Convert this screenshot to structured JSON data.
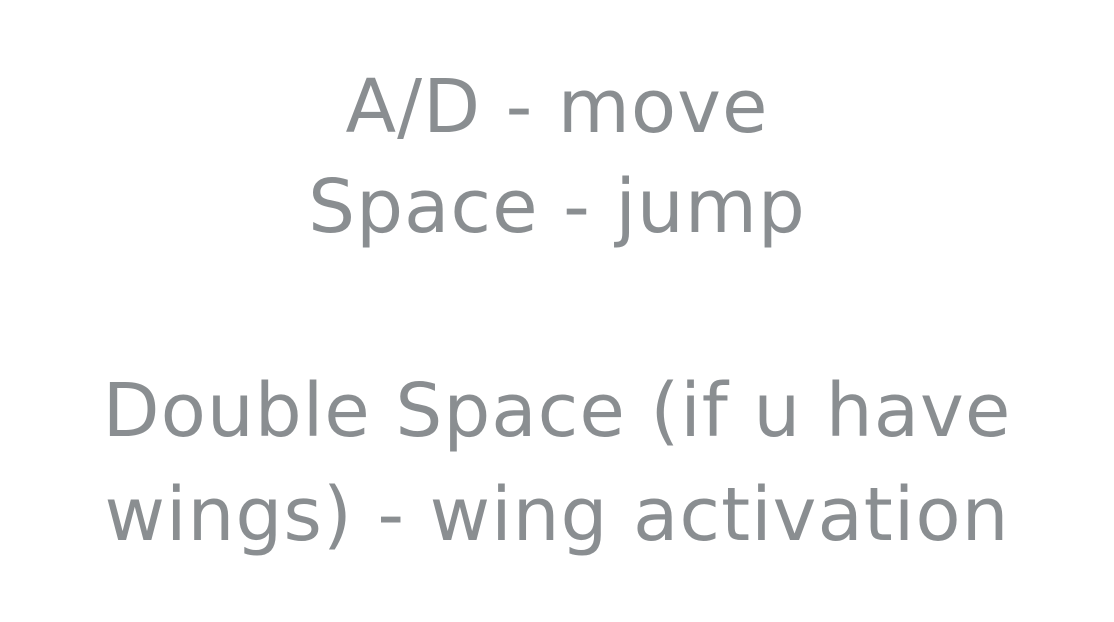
{
  "controls": {
    "move_line": "A/D - move",
    "jump_line": "Space - jump",
    "wing_line_1": "Double Space (if u have",
    "wing_line_2": "wings) - wing activation"
  },
  "colors": {
    "background": "#ffffff",
    "text": "#8a8e91"
  }
}
